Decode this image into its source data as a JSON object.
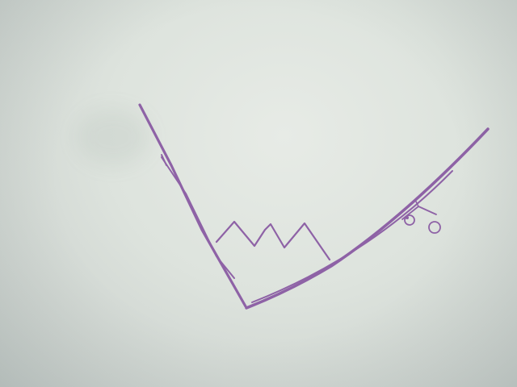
{
  "scene": {
    "marker_color": "#8e62a6",
    "paper_color": "#dfe5df"
  }
}
